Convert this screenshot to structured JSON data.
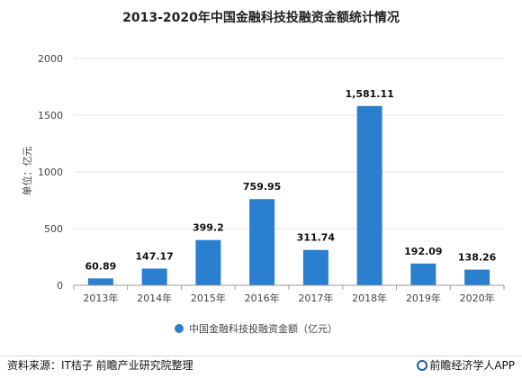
{
  "colors": {
    "bar": "#2a7fcf",
    "grid": "#e3e3e3",
    "axis": "#999999"
  },
  "footer": {
    "source": "资料来源：IT桔子 前瞻产业研究院整理",
    "brand": "前瞻经济学人APP",
    "brand_icon": "brand-logo-icon"
  },
  "chart_data": {
    "type": "bar",
    "title": "2013-2020年中国金融科技投融资金额统计情况",
    "ylabel": "单位：亿元",
    "xlabel": "",
    "ylim": [
      0,
      2000
    ],
    "yticks": [
      0,
      500,
      1000,
      1500,
      2000
    ],
    "categories": [
      "2013年",
      "2014年",
      "2015年",
      "2016年",
      "2017年",
      "2018年",
      "2019年",
      "2020年"
    ],
    "series": [
      {
        "name": "中国金融科技投融资金额（亿元）",
        "values": [
          60.89,
          147.17,
          399.2,
          759.95,
          311.74,
          1581.11,
          192.09,
          138.26
        ],
        "labels": [
          "60.89",
          "147.17",
          "399.2",
          "759.95",
          "311.74",
          "1,581.11",
          "192.09",
          "138.26"
        ]
      }
    ],
    "grid": true,
    "legend": "bottom-center"
  }
}
